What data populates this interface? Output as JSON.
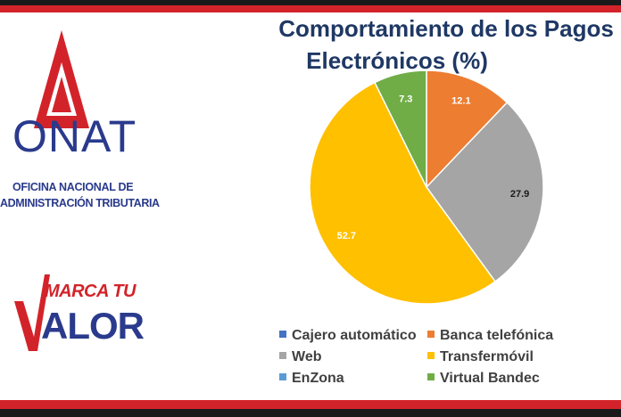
{
  "branding": {
    "onat_acronym": "ONAT",
    "onat_line1": "OFICINA NACIONAL DE",
    "onat_line2": "ADMINISTRACIÓN TRIBUTARIA",
    "slogan_top": "MARCA TU",
    "slogan_bottom": "ALOR",
    "colors": {
      "red": "#d3232a",
      "blue": "#2a3a8c"
    }
  },
  "chart_data": {
    "type": "pie",
    "title": "Comportamiento de los Pagos Electrónicos (%)",
    "title_line1": "Comportamiento de los Pagos",
    "title_line2": "Electrónicos (%)",
    "legend_position": "bottom",
    "categories": [
      "Cajero automático",
      "Banca telefónica",
      "Web",
      "Transfermóvil",
      "EnZona",
      "Virtual Bandec"
    ],
    "values": [
      0,
      12.1,
      27.9,
      52.7,
      0,
      7.3
    ],
    "colors": [
      "#4472c4",
      "#ed7d31",
      "#a5a5a5",
      "#ffc000",
      "#5b9bd5",
      "#70ad47"
    ],
    "labels": [
      "",
      "12.1",
      "27.9",
      "52.7",
      "",
      "7.3"
    ]
  }
}
